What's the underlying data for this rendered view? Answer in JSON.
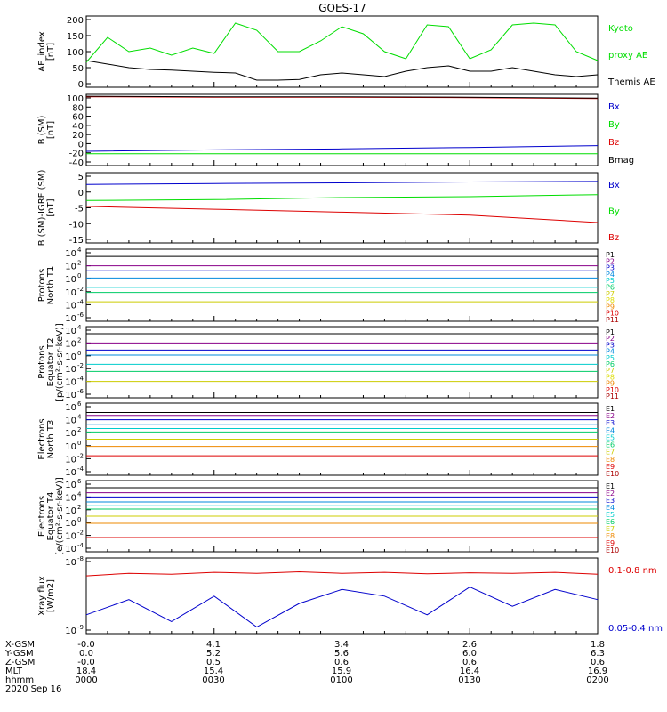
{
  "title": "GOES-17",
  "panels": [
    {
      "id": "ae",
      "ylabel": [
        "AE_index",
        "[nT]"
      ],
      "yticks": [
        "200",
        "150",
        "100",
        "50",
        "0"
      ],
      "legend": [
        {
          "text": "Kyoto",
          "color": "#00dd00"
        },
        {
          "text": "proxy AE",
          "color": "#00dd00"
        },
        {
          "text": "Themis AE",
          "color": "#000000"
        }
      ]
    },
    {
      "id": "bsm",
      "ylabel": [
        "B (SM)",
        "[nT]"
      ],
      "yticks": [
        "100",
        "80",
        "60",
        "40",
        "20",
        "0",
        "-20",
        "-40"
      ],
      "legend": [
        {
          "text": "Bx",
          "color": "#0000cc"
        },
        {
          "text": "By",
          "color": "#00dd00"
        },
        {
          "text": "Bz",
          "color": "#dd0000"
        },
        {
          "text": "Bmag",
          "color": "#000000"
        }
      ]
    },
    {
      "id": "bigrf",
      "ylabel": [
        "B (SM)-IGRF (SM)",
        "[nT]"
      ],
      "yticks": [
        "5",
        "0",
        "-5",
        "-10",
        "-15"
      ],
      "legend": [
        {
          "text": "Bx",
          "color": "#0000cc"
        },
        {
          "text": "By",
          "color": "#00dd00"
        },
        {
          "text": "Bz",
          "color": "#dd0000"
        }
      ]
    },
    {
      "id": "protonsN",
      "ylabel": [
        "Protons",
        "North T1"
      ],
      "yticks": [
        "10",
        "10",
        "10",
        "10",
        "10",
        "10"
      ],
      "yexp": [
        "4",
        "2",
        "0",
        "-2",
        "-4",
        "-6"
      ],
      "legend": [
        {
          "text": "P1",
          "color": "#000000"
        },
        {
          "text": "P2",
          "color": "#880088"
        },
        {
          "text": "P3",
          "color": "#0000cc"
        },
        {
          "text": "P4",
          "color": "#0088dd"
        },
        {
          "text": "P5",
          "color": "#00cccc"
        },
        {
          "text": "P6",
          "color": "#00cc66"
        },
        {
          "text": "P7",
          "color": "#cccc00"
        },
        {
          "text": "P8",
          "color": "#dddd00"
        },
        {
          "text": "P9",
          "color": "#ee8800"
        },
        {
          "text": "P10",
          "color": "#dd0000"
        },
        {
          "text": "P11",
          "color": "#aa0000"
        }
      ]
    },
    {
      "id": "protonsE",
      "ylabel": [
        "Protons",
        "Equator T2",
        "[p/(cm²-s-sr-keV)]"
      ],
      "yticks": [
        "10",
        "10",
        "10",
        "10",
        "10",
        "10"
      ],
      "yexp": [
        "4",
        "2",
        "0",
        "-2",
        "-4",
        "-6"
      ],
      "legend": [
        {
          "text": "P1",
          "color": "#000000"
        },
        {
          "text": "P2",
          "color": "#880088"
        },
        {
          "text": "P3",
          "color": "#0000cc"
        },
        {
          "text": "P4",
          "color": "#0088dd"
        },
        {
          "text": "P5",
          "color": "#00cccc"
        },
        {
          "text": "P6",
          "color": "#00cc66"
        },
        {
          "text": "P7",
          "color": "#cccc00"
        },
        {
          "text": "P8",
          "color": "#dddd00"
        },
        {
          "text": "P9",
          "color": "#ee8800"
        },
        {
          "text": "P10",
          "color": "#dd0000"
        },
        {
          "text": "P11",
          "color": "#aa0000"
        }
      ]
    },
    {
      "id": "electronsN",
      "ylabel": [
        "Electrons",
        "North T3"
      ],
      "yticks": [
        "10",
        "10",
        "10",
        "10",
        "10",
        "10"
      ],
      "yexp": [
        "6",
        "4",
        "2",
        "0",
        "-2",
        "-4"
      ],
      "legend": [
        {
          "text": "E1",
          "color": "#000000"
        },
        {
          "text": "E2",
          "color": "#880088"
        },
        {
          "text": "E3",
          "color": "#0000cc"
        },
        {
          "text": "E4",
          "color": "#0088dd"
        },
        {
          "text": "E5",
          "color": "#00cccc"
        },
        {
          "text": "E6",
          "color": "#00cc66"
        },
        {
          "text": "E7",
          "color": "#cccc00"
        },
        {
          "text": "E8",
          "color": "#ee8800"
        },
        {
          "text": "E9",
          "color": "#dd0000"
        },
        {
          "text": "E10",
          "color": "#aa0000"
        }
      ]
    },
    {
      "id": "electronsE",
      "ylabel": [
        "Electrons",
        "Equator T4",
        "[e/(cm²-s-sr-keV)]"
      ],
      "yticks": [
        "10",
        "10",
        "10",
        "10",
        "10",
        "10"
      ],
      "yexp": [
        "6",
        "4",
        "2",
        "0",
        "-2",
        "-4"
      ],
      "legend": [
        {
          "text": "E1",
          "color": "#000000"
        },
        {
          "text": "E2",
          "color": "#880088"
        },
        {
          "text": "E3",
          "color": "#0000cc"
        },
        {
          "text": "E4",
          "color": "#0088dd"
        },
        {
          "text": "E5",
          "color": "#00cccc"
        },
        {
          "text": "E6",
          "color": "#00cc66"
        },
        {
          "text": "E7",
          "color": "#cccc00"
        },
        {
          "text": "E8",
          "color": "#ee8800"
        },
        {
          "text": "E9",
          "color": "#dd0000"
        },
        {
          "text": "E10",
          "color": "#aa0000"
        }
      ]
    },
    {
      "id": "xray",
      "ylabel": [
        "Xray flux",
        "[W/m2]"
      ],
      "yticks": [
        "10",
        "10"
      ],
      "yexp": [
        "-8",
        "-9"
      ],
      "legend": [
        {
          "text": "0.1-0.8 nm",
          "color": "#dd0000"
        },
        {
          "text": "0.05-0.4 nm",
          "color": "#0000cc"
        }
      ]
    }
  ],
  "footer": {
    "rows": [
      {
        "label": "X-GSM",
        "values": [
          "-0.0",
          "4.1",
          "3.4",
          "2.6",
          "1.8"
        ]
      },
      {
        "label": "Y-GSM",
        "values": [
          "0.0",
          "5.2",
          "5.6",
          "6.0",
          "6.3"
        ]
      },
      {
        "label": "Z-GSM",
        "values": [
          "-0.0",
          "0.5",
          "0.6",
          "0.6",
          "0.6"
        ]
      },
      {
        "label": "MLT",
        "values": [
          "18.4",
          "15.4",
          "15.9",
          "16.4",
          "16.9"
        ]
      },
      {
        "label": "hhmm",
        "values": [
          "0000",
          "0030",
          "0100",
          "0130",
          "0200"
        ]
      }
    ],
    "date": "2020 Sep 16"
  },
  "chart_data": [
    {
      "type": "line",
      "title": "GOES-17",
      "ylabel": "AE_index [nT]",
      "ylim": [
        0,
        200
      ],
      "x": [
        0,
        5,
        10,
        15,
        20,
        25,
        30,
        35,
        40,
        45,
        50,
        55,
        60,
        65,
        70,
        75,
        80,
        85,
        90,
        95,
        100,
        105,
        110,
        115,
        120
      ],
      "x_unit": "minutes from 0000 UT",
      "series": [
        {
          "name": "Kyoto proxy AE",
          "color": "#00dd00",
          "values": [
            70,
            140,
            100,
            110,
            90,
            110,
            95,
            180,
            160,
            100,
            100,
            130,
            170,
            150,
            100,
            80,
            175,
            170,
            80,
            105,
            175,
            180,
            175,
            100,
            75
          ]
        },
        {
          "name": "Themis AE",
          "color": "#000000",
          "values": [
            75,
            65,
            55,
            50,
            48,
            45,
            42,
            40,
            20,
            20,
            22,
            35,
            40,
            35,
            30,
            45,
            55,
            60,
            45,
            45,
            55,
            45,
            35,
            30,
            35
          ]
        }
      ]
    },
    {
      "type": "line",
      "ylabel": "B (SM) [nT]",
      "ylim": [
        -45,
        105
      ],
      "x": [
        0,
        30,
        60,
        90,
        120
      ],
      "x_unit": "minutes from 0000 UT",
      "series": [
        {
          "name": "Bx",
          "color": "#0000cc",
          "values": [
            -15,
            -12,
            -10,
            -7,
            -3
          ]
        },
        {
          "name": "By",
          "color": "#00dd00",
          "values": [
            -20,
            -20,
            -20,
            -20,
            -20
          ]
        },
        {
          "name": "Bz",
          "color": "#dd0000",
          "values": [
            100,
            99,
            99,
            98,
            96
          ]
        },
        {
          "name": "Bmag",
          "color": "#000000",
          "values": [
            101,
            100,
            100,
            99,
            97
          ]
        }
      ]
    },
    {
      "type": "line",
      "ylabel": "B (SM)-IGRF (SM) [nT]",
      "ylim": [
        -17,
        7
      ],
      "x": [
        0,
        30,
        60,
        90,
        120
      ],
      "x_unit": "minutes from 0000 UT",
      "series": [
        {
          "name": "Bx",
          "color": "#0000cc",
          "values": [
            3,
            3.3,
            3.5,
            3.8,
            4
          ]
        },
        {
          "name": "By",
          "color": "#00dd00",
          "values": [
            -2.5,
            -2.2,
            -1.5,
            -1.2,
            -0.5
          ]
        },
        {
          "name": "Bz",
          "color": "#dd0000",
          "values": [
            -4.5,
            -5.5,
            -6.5,
            -7.5,
            -10
          ]
        }
      ]
    },
    {
      "type": "line",
      "ylabel": "Protons North T1",
      "yscale": "log",
      "ylim": [
        1e-06,
        10000
      ],
      "x": [
        0,
        30,
        60,
        90,
        120
      ],
      "x_unit": "minutes from 0000 UT",
      "series": [
        {
          "name": "P1",
          "color": "#000000",
          "values": [
            1000,
            1000,
            1000,
            1000,
            1000
          ]
        },
        {
          "name": "P2",
          "color": "#880088",
          "values": [
            50,
            50,
            50,
            50,
            50
          ]
        },
        {
          "name": "P3",
          "color": "#0000cc",
          "values": [
            10,
            10,
            10,
            10,
            10
          ]
        },
        {
          "name": "P4",
          "color": "#0088dd",
          "values": [
            1,
            1,
            1,
            1,
            1
          ]
        },
        {
          "name": "P5",
          "color": "#00cccc",
          "values": [
            0.05,
            0.05,
            0.05,
            0.05,
            0.05
          ]
        },
        {
          "name": "P6",
          "color": "#00cc66",
          "values": [
            0.01,
            0.01,
            0.01,
            0.01,
            0.01
          ]
        },
        {
          "name": "P7",
          "color": "#cccc00",
          "values": [
            0.0005,
            0.0005,
            0.0005,
            0.0005,
            0.0005
          ]
        }
      ]
    },
    {
      "type": "line",
      "ylabel": "Protons Equator T2 [p/(cm²-s-sr-keV)]",
      "yscale": "log",
      "ylim": [
        1e-06,
        10000
      ],
      "x": [
        0,
        30,
        60,
        90,
        120
      ],
      "x_unit": "minutes from 0000 UT",
      "series": [
        {
          "name": "P1",
          "color": "#000000",
          "values": [
            1000,
            1000,
            1000,
            1000,
            1000
          ]
        },
        {
          "name": "P2",
          "color": "#880088",
          "values": [
            50,
            50,
            50,
            50,
            50
          ]
        },
        {
          "name": "P3",
          "color": "#0000cc",
          "values": [
            5,
            5,
            5,
            5,
            5
          ]
        },
        {
          "name": "P4",
          "color": "#0088dd",
          "values": [
            1,
            1,
            1,
            1,
            1
          ]
        },
        {
          "name": "P5",
          "color": "#00cccc",
          "values": [
            0.05,
            0.05,
            0.05,
            0.05,
            0.05
          ]
        },
        {
          "name": "P6",
          "color": "#00cc66",
          "values": [
            0.005,
            0.005,
            0.005,
            0.005,
            0.005
          ]
        },
        {
          "name": "P7",
          "color": "#cccc00",
          "values": [
            0.0002,
            0.0002,
            0.0002,
            0.0002,
            0.0002
          ]
        }
      ]
    },
    {
      "type": "line",
      "ylabel": "Electrons North T3",
      "yscale": "log",
      "ylim": [
        0.0001,
        1000000
      ],
      "x": [
        0,
        30,
        60,
        90,
        120
      ],
      "x_unit": "minutes from 0000 UT",
      "series": [
        {
          "name": "E1",
          "color": "#000000",
          "values": [
            50000,
            50000,
            50000,
            50000,
            50000
          ]
        },
        {
          "name": "E2",
          "color": "#880088",
          "values": [
            20000,
            20000,
            20000,
            20000,
            20000
          ]
        },
        {
          "name": "E3",
          "color": "#0000cc",
          "values": [
            5000,
            5000,
            5000,
            5000,
            5000
          ]
        },
        {
          "name": "E4",
          "color": "#0088dd",
          "values": [
            1000,
            1000,
            1000,
            1000,
            1000
          ]
        },
        {
          "name": "E5",
          "color": "#00cccc",
          "values": [
            300,
            300,
            300,
            300,
            300
          ]
        },
        {
          "name": "E6",
          "color": "#00cc66",
          "values": [
            100,
            100,
            100,
            100,
            100
          ]
        },
        {
          "name": "E7",
          "color": "#cccc00",
          "values": [
            10,
            10,
            10,
            10,
            10
          ]
        },
        {
          "name": "E8",
          "color": "#ee8800",
          "values": [
            1,
            1,
            1,
            1,
            1
          ]
        },
        {
          "name": "E9",
          "color": "#dd0000",
          "values": [
            0.05,
            0.05,
            0.05,
            0.05,
            0.05
          ]
        }
      ]
    },
    {
      "type": "line",
      "ylabel": "Electrons Equator T4 [e/(cm²-s-sr-keV)]",
      "yscale": "log",
      "ylim": [
        0.0001,
        1000000
      ],
      "x": [
        0,
        30,
        60,
        90,
        120
      ],
      "x_unit": "minutes from 0000 UT",
      "series": [
        {
          "name": "E1",
          "color": "#000000",
          "values": [
            100000,
            100000,
            100000,
            100000,
            100000
          ]
        },
        {
          "name": "E2",
          "color": "#880088",
          "values": [
            20000,
            20000,
            20000,
            20000,
            20000
          ]
        },
        {
          "name": "E3",
          "color": "#0000cc",
          "values": [
            5000,
            5000,
            5000,
            5000,
            5000
          ]
        },
        {
          "name": "E4",
          "color": "#0088dd",
          "values": [
            1000,
            1000,
            1000,
            1000,
            1000
          ]
        },
        {
          "name": "E5",
          "color": "#00cccc",
          "values": [
            300,
            300,
            300,
            300,
            300
          ]
        },
        {
          "name": "E6",
          "color": "#00cc66",
          "values": [
            100,
            100,
            100,
            100,
            100
          ]
        },
        {
          "name": "E7",
          "color": "#cccc00",
          "values": [
            10,
            10,
            10,
            10,
            10
          ]
        },
        {
          "name": "E8",
          "color": "#ee8800",
          "values": [
            1,
            1,
            1,
            1,
            1
          ]
        },
        {
          "name": "E9",
          "color": "#dd0000",
          "values": [
            0.01,
            0.01,
            0.01,
            0.01,
            0.01
          ]
        }
      ]
    },
    {
      "type": "line",
      "ylabel": "Xray flux [W/m2]",
      "yscale": "log",
      "ylim": [
        8e-10,
        1e-08
      ],
      "x": [
        0,
        10,
        20,
        30,
        40,
        50,
        60,
        70,
        80,
        90,
        100,
        110,
        120
      ],
      "x_unit": "minutes from 0000 UT",
      "series": [
        {
          "name": "0.1-0.8 nm",
          "color": "#dd0000",
          "values": [
            5.5e-09,
            6e-09,
            5.8e-09,
            6.2e-09,
            6e-09,
            6.3e-09,
            6e-09,
            6.2e-09,
            5.9e-09,
            6.1e-09,
            6e-09,
            6.2e-09,
            5.8e-09
          ]
        },
        {
          "name": "0.05-0.4 nm",
          "color": "#0000cc",
          "values": [
            1.5e-09,
            2.5e-09,
            1.2e-09,
            2.8e-09,
            1e-09,
            2.2e-09,
            3.5e-09,
            2.8e-09,
            1.5e-09,
            3.8e-09,
            2e-09,
            3.5e-09,
            2.5e-09
          ]
        }
      ]
    }
  ]
}
